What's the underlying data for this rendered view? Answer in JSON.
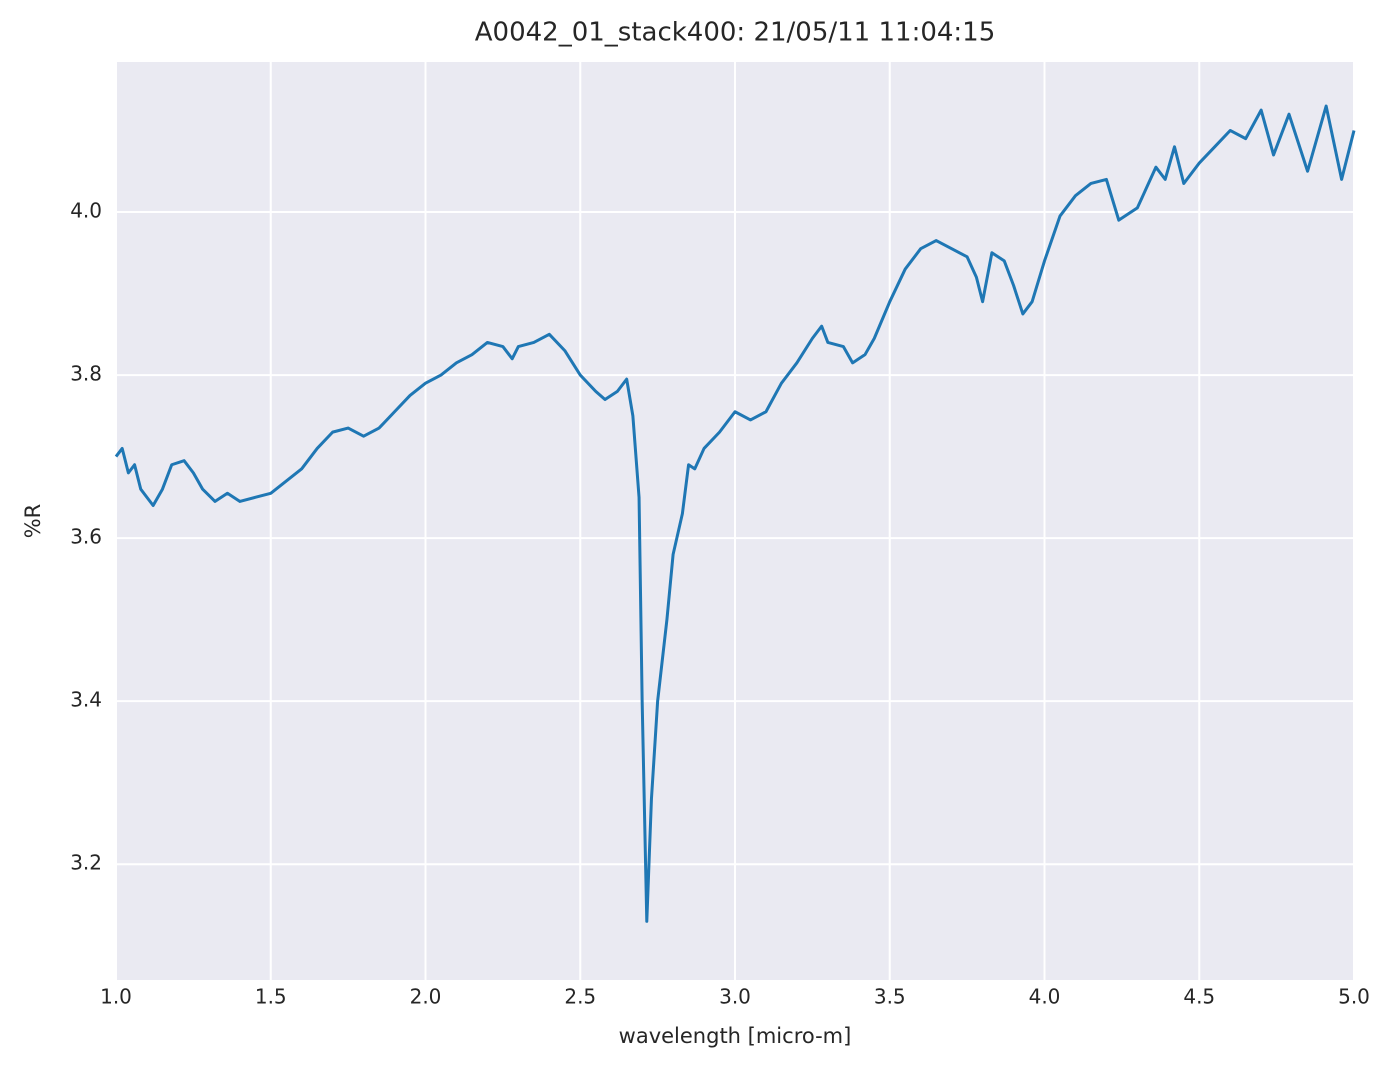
{
  "chart_data": {
    "type": "line",
    "title": "A0042_01_stack400:  21/05/11 11:04:15",
    "xlabel": "wavelength [micro-m]",
    "ylabel": "%R",
    "x": [
      1.0,
      1.02,
      1.04,
      1.06,
      1.08,
      1.1,
      1.12,
      1.15,
      1.18,
      1.22,
      1.25,
      1.28,
      1.32,
      1.36,
      1.4,
      1.45,
      1.5,
      1.55,
      1.6,
      1.65,
      1.7,
      1.75,
      1.8,
      1.85,
      1.9,
      1.95,
      2.0,
      2.05,
      2.1,
      2.15,
      2.2,
      2.25,
      2.28,
      2.3,
      2.35,
      2.4,
      2.45,
      2.5,
      2.55,
      2.58,
      2.62,
      2.65,
      2.67,
      2.69,
      2.7,
      2.715,
      2.73,
      2.75,
      2.78,
      2.8,
      2.83,
      2.85,
      2.87,
      2.9,
      2.95,
      3.0,
      3.05,
      3.1,
      3.15,
      3.2,
      3.25,
      3.28,
      3.3,
      3.35,
      3.38,
      3.42,
      3.45,
      3.5,
      3.55,
      3.6,
      3.65,
      3.7,
      3.75,
      3.78,
      3.8,
      3.83,
      3.87,
      3.9,
      3.93,
      3.96,
      4.0,
      4.05,
      4.1,
      4.15,
      4.2,
      4.24,
      4.3,
      4.33,
      4.36,
      4.39,
      4.42,
      4.45,
      4.5,
      4.55,
      4.6,
      4.65,
      4.7,
      4.74,
      4.79,
      4.85,
      4.91,
      4.96,
      5.0
    ],
    "series": [
      {
        "name": "%R",
        "color": "#1f77b4",
        "values": [
          3.7,
          3.71,
          3.68,
          3.69,
          3.66,
          3.65,
          3.64,
          3.66,
          3.69,
          3.695,
          3.68,
          3.66,
          3.645,
          3.655,
          3.645,
          3.65,
          3.655,
          3.67,
          3.685,
          3.71,
          3.73,
          3.735,
          3.725,
          3.735,
          3.755,
          3.775,
          3.79,
          3.8,
          3.815,
          3.825,
          3.84,
          3.835,
          3.82,
          3.835,
          3.84,
          3.85,
          3.83,
          3.8,
          3.78,
          3.77,
          3.78,
          3.795,
          3.75,
          3.65,
          3.4,
          3.13,
          3.28,
          3.4,
          3.5,
          3.58,
          3.63,
          3.69,
          3.685,
          3.71,
          3.73,
          3.755,
          3.745,
          3.755,
          3.79,
          3.815,
          3.845,
          3.86,
          3.84,
          3.835,
          3.815,
          3.825,
          3.845,
          3.89,
          3.93,
          3.955,
          3.965,
          3.955,
          3.945,
          3.92,
          3.89,
          3.95,
          3.94,
          3.91,
          3.875,
          3.89,
          3.94,
          3.995,
          4.02,
          4.035,
          4.04,
          3.99,
          4.005,
          4.03,
          4.055,
          4.04,
          4.08,
          4.035,
          4.06,
          4.08,
          4.1,
          4.09,
          4.125,
          4.07,
          4.12,
          4.05,
          4.13,
          4.04,
          4.1
        ]
      }
    ],
    "xlim": [
      1.0,
      5.0
    ],
    "xticks": [
      {
        "value": 1.0,
        "label": "1.0"
      },
      1.5,
      {
        "value": 2.0,
        "label": "2.0"
      },
      2.5,
      {
        "value": 3.0,
        "label": "3.0"
      },
      3.5,
      {
        "value": 4.0,
        "label": "4.0"
      },
      4.5,
      {
        "value": 5.0,
        "label": "5.0"
      }
    ],
    "ylim": [
      3.058,
      4.184
    ],
    "yticks": [
      3.2,
      3.4,
      3.6,
      3.8,
      {
        "value": 4.0,
        "label": "4.0"
      }
    ],
    "grid": true
  }
}
